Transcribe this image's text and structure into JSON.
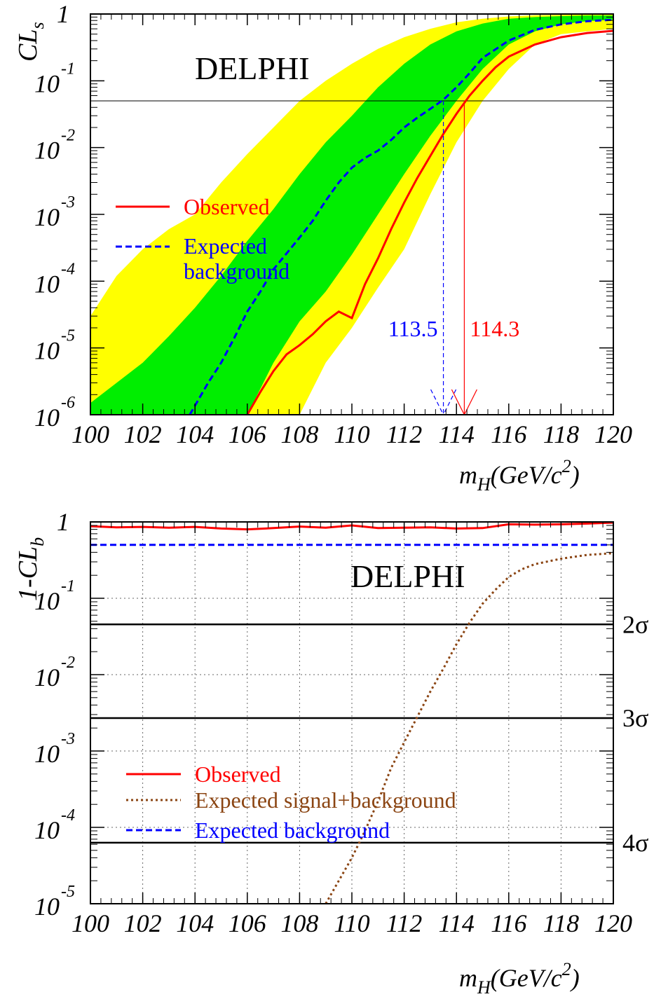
{
  "chart_data": [
    {
      "type": "line",
      "title": "DELPHI",
      "xlabel_main": "m",
      "xlabel_sub": "H",
      "xlabel_rest": "(GeV/c",
      "xlabel_sup": "2",
      "xlabel_end": ")",
      "ylabel_main": "CL",
      "ylabel_sub": "s",
      "y_scale": "log",
      "xlim": [
        100,
        120
      ],
      "ylim": [
        1e-06,
        1
      ],
      "x_ticks": [
        "100",
        "102",
        "104",
        "106",
        "108",
        "110",
        "112",
        "114",
        "116",
        "118",
        "120"
      ],
      "y_ticks": [
        {
          "value": 1,
          "base": "1",
          "exp": ""
        },
        {
          "value": 0.1,
          "base": "10",
          "exp": "-1"
        },
        {
          "value": 0.01,
          "base": "10",
          "exp": "-2"
        },
        {
          "value": 0.001,
          "base": "10",
          "exp": "-3"
        },
        {
          "value": 0.0001,
          "base": "10",
          "exp": "-4"
        },
        {
          "value": 1e-05,
          "base": "10",
          "exp": "-5"
        },
        {
          "value": 1e-06,
          "base": "10",
          "exp": "-6"
        }
      ],
      "reference_line": 0.05,
      "limits": [
        {
          "label": "113.5",
          "x": 113.5,
          "color": "#0000ff"
        },
        {
          "label": "114.3",
          "x": 114.3,
          "color": "#ff0000"
        }
      ],
      "bands": {
        "x": [
          100,
          101,
          102,
          103,
          104,
          105,
          106,
          107,
          108,
          109,
          110,
          111,
          112,
          113,
          114,
          115,
          116,
          117,
          118,
          119,
          120
        ],
        "yellow_low": [
          1e-06,
          1e-06,
          1e-06,
          1e-06,
          1e-06,
          1e-06,
          1e-06,
          1e-06,
          1e-06,
          6e-06,
          2e-05,
          8e-05,
          0.0003,
          0.002,
          0.012,
          0.05,
          0.15,
          0.35,
          0.5,
          0.55,
          0.6
        ],
        "green_low": [
          1e-06,
          1e-06,
          1e-06,
          1e-06,
          1e-06,
          1e-06,
          1e-06,
          6e-06,
          2.5e-05,
          7e-05,
          0.00025,
          0.001,
          0.004,
          0.015,
          0.05,
          0.15,
          0.35,
          0.55,
          0.7,
          0.78,
          0.82
        ],
        "green_high": [
          1.5e-06,
          3e-06,
          6e-06,
          1.5e-05,
          4e-05,
          0.00012,
          0.0004,
          0.0012,
          0.004,
          0.012,
          0.03,
          0.08,
          0.18,
          0.35,
          0.55,
          0.72,
          0.85,
          0.9,
          0.93,
          0.95,
          0.95
        ],
        "yellow_high": [
          3e-05,
          0.00012,
          0.0003,
          0.0006,
          0.001,
          0.003,
          0.008,
          0.02,
          0.05,
          0.1,
          0.18,
          0.3,
          0.45,
          0.6,
          0.75,
          0.85,
          0.92,
          0.96,
          0.97,
          0.98,
          0.98
        ]
      },
      "series": [
        {
          "name": "Observed",
          "color": "#ff0000",
          "dash": "solid",
          "x": [
            106,
            106.5,
            107,
            107.5,
            108,
            108.5,
            109,
            109.5,
            110,
            110.5,
            111,
            111.5,
            112,
            112.5,
            113,
            113.5,
            114,
            114.5,
            115,
            115.5,
            116,
            117,
            118,
            119,
            120
          ],
          "y": [
            1e-06,
            2.2e-06,
            4.5e-06,
            8e-06,
            1.1e-05,
            1.6e-05,
            2.5e-05,
            3.5e-05,
            2.8e-05,
            9e-05,
            0.00022,
            0.0006,
            0.0015,
            0.0035,
            0.0075,
            0.016,
            0.032,
            0.06,
            0.1,
            0.16,
            0.23,
            0.35,
            0.45,
            0.52,
            0.56
          ]
        },
        {
          "name": "Expected background",
          "color": "#0000ff",
          "dash": "dashed",
          "x": [
            103.8,
            104.5,
            105,
            105.5,
            106,
            106.5,
            107,
            107.5,
            108,
            108.5,
            109,
            109.5,
            110,
            110.5,
            111,
            111.5,
            112,
            112.5,
            113,
            113.5,
            114,
            114.5,
            115,
            116,
            117,
            118,
            119,
            120
          ],
          "y": [
            1e-06,
            3e-06,
            6e-06,
            1.4e-05,
            3.5e-05,
            7e-05,
            0.00015,
            0.00026,
            0.00045,
            0.0008,
            0.0016,
            0.003,
            0.005,
            0.007,
            0.009,
            0.013,
            0.02,
            0.028,
            0.038,
            0.052,
            0.08,
            0.13,
            0.22,
            0.4,
            0.58,
            0.7,
            0.78,
            0.82
          ]
        }
      ],
      "legend": [
        {
          "label": "Observed",
          "color": "#ff0000",
          "dash": "solid"
        },
        {
          "label1": "Expected",
          "label2": "background",
          "color": "#0000ff",
          "dash": "dashed"
        }
      ]
    },
    {
      "type": "line",
      "title": "DELPHI",
      "xlabel_main": "m",
      "xlabel_sub": "H",
      "xlabel_rest": "(GeV/c",
      "xlabel_sup": "2",
      "xlabel_end": ")",
      "ylabel_main": "1-CL",
      "ylabel_sub": "b",
      "y_scale": "log",
      "grid": true,
      "xlim": [
        100,
        120
      ],
      "ylim": [
        1e-05,
        1
      ],
      "x_ticks": [
        "100",
        "102",
        "104",
        "106",
        "108",
        "110",
        "112",
        "114",
        "116",
        "118",
        "120"
      ],
      "y_ticks": [
        {
          "value": 1,
          "base": "1",
          "exp": ""
        },
        {
          "value": 0.1,
          "base": "10",
          "exp": "-1"
        },
        {
          "value": 0.01,
          "base": "10",
          "exp": "-2"
        },
        {
          "value": 0.001,
          "base": "10",
          "exp": "-3"
        },
        {
          "value": 0.0001,
          "base": "10",
          "exp": "-4"
        },
        {
          "value": 1e-05,
          "base": "10",
          "exp": "-5"
        }
      ],
      "sigma_lines": [
        {
          "label": "2σ",
          "value": 0.0455
        },
        {
          "label": "3σ",
          "value": 0.0027
        },
        {
          "label": "4σ",
          "value": 6.3e-05
        }
      ],
      "series": [
        {
          "name": "Observed",
          "color": "#ff0000",
          "dash": "solid",
          "x": [
            100,
            101,
            102,
            103,
            104,
            105,
            106,
            107,
            108,
            109,
            110,
            111,
            112,
            113,
            114,
            115,
            116,
            117,
            118,
            119,
            120
          ],
          "y": [
            0.88,
            0.85,
            0.86,
            0.84,
            0.86,
            0.82,
            0.8,
            0.83,
            0.87,
            0.84,
            0.9,
            0.83,
            0.84,
            0.85,
            0.82,
            0.83,
            0.93,
            0.92,
            0.93,
            0.95,
            0.98
          ]
        },
        {
          "name": "Expected signal+background",
          "color": "#8b4513",
          "dash": "dotted",
          "x": [
            109,
            109.5,
            110,
            110.5,
            111,
            111.5,
            112,
            112.5,
            113,
            113.5,
            114,
            114.5,
            115,
            115.5,
            116,
            116.5,
            117,
            118,
            119,
            120
          ],
          "y": [
            1e-05,
            2e-05,
            4e-05,
            9e-05,
            0.00022,
            0.0006,
            0.0013,
            0.0028,
            0.006,
            0.012,
            0.025,
            0.048,
            0.085,
            0.13,
            0.19,
            0.24,
            0.28,
            0.33,
            0.37,
            0.39
          ]
        },
        {
          "name": "Expected background",
          "color": "#0000ff",
          "dash": "dashed",
          "x": [
            100,
            120
          ],
          "y": [
            0.5,
            0.5
          ]
        }
      ],
      "legend": [
        {
          "label": "Observed",
          "color": "#ff0000",
          "dash": "solid"
        },
        {
          "label": "Expected signal+background",
          "color": "#8b4513",
          "dash": "dotted"
        },
        {
          "label": "Expected background",
          "color": "#0000ff",
          "dash": "dashed"
        }
      ]
    }
  ]
}
